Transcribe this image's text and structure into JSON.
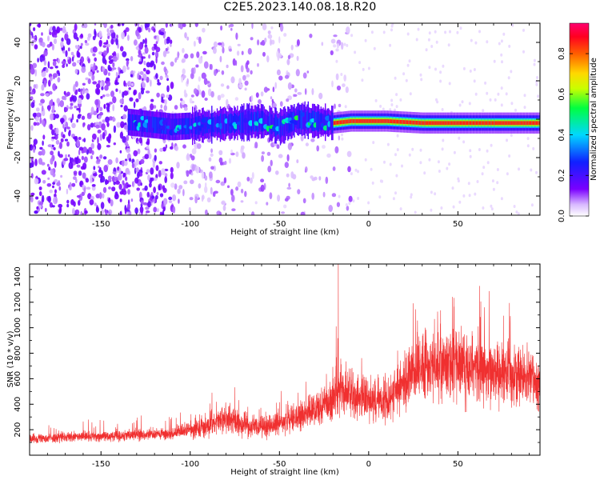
{
  "title": "C2E5.2023.140.08.18.R20",
  "colors": {
    "snr_line": "#f03030",
    "axis": "#000000",
    "background": "#ffffff"
  },
  "chart_data": [
    {
      "type": "heatmap",
      "xlabel": "Height of straight line (km)",
      "ylabel": "Frequency (Hz)",
      "xlim": [
        -190,
        96
      ],
      "ylim": [
        -50,
        50
      ],
      "xticks": [
        -150,
        -100,
        -50,
        0,
        50
      ],
      "yticks": [
        -40,
        -20,
        0,
        20,
        40
      ],
      "grid": false,
      "colorbar": {
        "label": "Normalized spectral amplitude",
        "range": [
          0,
          0.95
        ],
        "ticks": [
          "0.0",
          "0.2",
          "0.4",
          "0.6",
          "0.8"
        ],
        "colormap": "rainbow (white-violet-blue-cyan-green-yellow-orange-red-magenta)"
      },
      "features": {
        "noise_region_x": [
          -190,
          -20
        ],
        "signal_band_center_hz": [
          [
            -130,
            -2
          ],
          [
            -110,
            -4
          ],
          [
            -90,
            -3
          ],
          [
            -75,
            -2
          ],
          [
            -60,
            -1
          ],
          [
            -50,
            -4
          ],
          [
            -40,
            0
          ],
          [
            -30,
            -1
          ],
          [
            -20,
            -2
          ],
          [
            -10,
            -1
          ],
          [
            0,
            -1
          ],
          [
            10,
            -1
          ],
          [
            30,
            -2
          ],
          [
            50,
            -2
          ],
          [
            70,
            -2
          ],
          [
            96,
            -2
          ]
        ],
        "peak_amplitude": 0.95
      }
    },
    {
      "type": "line",
      "xlabel": "Height of straight line (km)",
      "ylabel": "SNR (10 * v/v)",
      "xlim": [
        -190,
        96
      ],
      "ylim": [
        0,
        1500
      ],
      "xticks": [
        -150,
        -100,
        -50,
        0,
        50
      ],
      "yticks": [
        200,
        400,
        600,
        800,
        1000,
        1200,
        1400
      ],
      "grid": false,
      "series": [
        {
          "x": [
            -190,
            -170,
            -150,
            -130,
            -110,
            -100,
            -90,
            -85,
            -80,
            -75,
            -70,
            -65,
            -60,
            -55,
            -50,
            -45,
            -40,
            -35,
            -30,
            -25,
            -20,
            -18,
            -15,
            -10,
            -5,
            0,
            5,
            10,
            15,
            20,
            25,
            30,
            35,
            40,
            45,
            50,
            55,
            60,
            65,
            70,
            75,
            80,
            85,
            90,
            96
          ],
          "values": [
            130,
            140,
            150,
            160,
            165,
            200,
            230,
            270,
            290,
            260,
            250,
            220,
            210,
            230,
            250,
            270,
            290,
            320,
            360,
            390,
            420,
            520,
            500,
            470,
            450,
            430,
            430,
            440,
            500,
            560,
            640,
            700,
            700,
            720,
            720,
            720,
            700,
            700,
            680,
            660,
            650,
            640,
            620,
            600,
            580
          ],
          "peak": {
            "x": -17,
            "value": 1500
          }
        }
      ]
    }
  ]
}
